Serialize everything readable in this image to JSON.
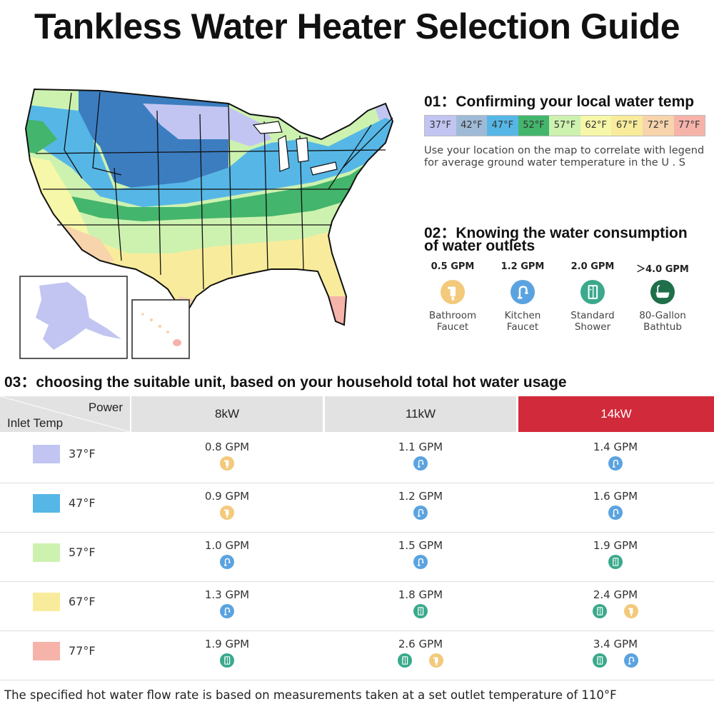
{
  "title": "Tankless Water Heater Selection Guide",
  "colors": {
    "t37": "#c2c5f2",
    "t42": "#9fbad6",
    "t47": "#56b7e6",
    "t52": "#44b56c",
    "t57": "#cdf2b0",
    "t62": "#f6f7a8",
    "t67": "#f8ec9c",
    "t72": "#f7d4ac",
    "t77": "#f6b3aa",
    "dark_blue": "#3c7dc0",
    "accent_red": "#d12a3a",
    "faucet": "#f3c97c",
    "kitchen": "#5ba3e0",
    "shower": "#3aa98c",
    "bathtub": "#1f6f4a"
  },
  "section1": {
    "heading": "01：Confirming your local water temp",
    "legend": [
      "37°F",
      "42°F",
      "47°F",
      "52°F",
      "57°F",
      "62°F",
      "67°F",
      "72°F",
      "77°F"
    ],
    "description": "Use your location on the map to correlate with legend for average ground water temperature in the U . S"
  },
  "section2": {
    "heading_line1": "02：Knowing the water consumption",
    "heading_line2": "of water outlets",
    "outlets": [
      {
        "gpm": "0.5 GPM",
        "name1": "Bathroom",
        "name2": "Faucet",
        "icon": "faucet-icon"
      },
      {
        "gpm": "1.2 GPM",
        "name1": "Kitchen",
        "name2": "Faucet",
        "icon": "kitchen-faucet-icon"
      },
      {
        "gpm": "2.0 GPM",
        "name1": "Standard",
        "name2": "Shower",
        "icon": "shower-icon"
      },
      {
        "gpm": "＞4.0 GPM",
        "name1": "80-Gallon",
        "name2": "Bathtub",
        "icon": "bathtub-icon"
      }
    ]
  },
  "section3": {
    "heading": "03：choosing the suitable unit, based on your household total hot water usage",
    "corner_power": "Power",
    "corner_inlet": "Inlet Temp",
    "columns": [
      "8kW",
      "11kW",
      "14kW"
    ],
    "rows": [
      {
        "temp": "37°F",
        "cells": [
          {
            "v": "0.8 GPM",
            "icons": [
              "faucet"
            ]
          },
          {
            "v": "1.1 GPM",
            "icons": [
              "kitchen"
            ]
          },
          {
            "v": "1.4 GPM",
            "icons": [
              "kitchen"
            ]
          }
        ]
      },
      {
        "temp": "47°F",
        "cells": [
          {
            "v": "0.9 GPM",
            "icons": [
              "faucet"
            ]
          },
          {
            "v": "1.2 GPM",
            "icons": [
              "kitchen"
            ]
          },
          {
            "v": "1.6 GPM",
            "icons": [
              "kitchen"
            ]
          }
        ]
      },
      {
        "temp": "57°F",
        "cells": [
          {
            "v": "1.0 GPM",
            "icons": [
              "kitchen"
            ]
          },
          {
            "v": "1.5 GPM",
            "icons": [
              "kitchen"
            ]
          },
          {
            "v": "1.9 GPM",
            "icons": [
              "shower"
            ]
          }
        ]
      },
      {
        "temp": "67°F",
        "cells": [
          {
            "v": "1.3 GPM",
            "icons": [
              "kitchen"
            ]
          },
          {
            "v": "1.8 GPM",
            "icons": [
              "shower"
            ]
          },
          {
            "v": "2.4 GPM",
            "icons": [
              "shower",
              "faucet"
            ]
          }
        ]
      },
      {
        "temp": "77°F",
        "cells": [
          {
            "v": "1.9 GPM",
            "icons": [
              "shower"
            ]
          },
          {
            "v": "2.6 GPM",
            "icons": [
              "shower",
              "faucet"
            ]
          },
          {
            "v": "3.4 GPM",
            "icons": [
              "shower",
              "kitchen"
            ]
          }
        ]
      }
    ]
  },
  "footer": "The specified hot water flow rate is based on measurements taken at a set outlet temperature of 110°F"
}
